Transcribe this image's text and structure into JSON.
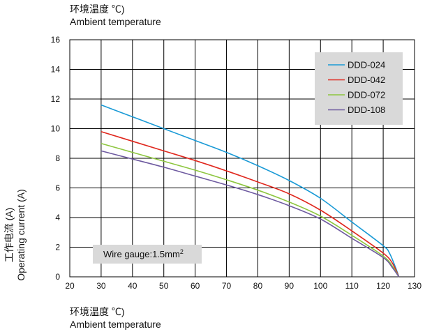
{
  "titles": {
    "top_cn": "环境温度 ℃)",
    "top_en": "Ambient temperature",
    "bottom_cn": "环境温度 ℃)",
    "bottom_en": "Ambient temperature",
    "y_cn": "工作电流 (A)",
    "y_en": "Operating current (A)"
  },
  "note": {
    "text": "Wire gauge:1.5mm",
    "sup": "2"
  },
  "chart_data": {
    "type": "line",
    "xlabel": "环境温度 ℃) Ambient temperature",
    "ylabel": "工作电流 (A) Operating current (A)",
    "xlim": [
      20,
      130
    ],
    "ylim": [
      0,
      16
    ],
    "xticks": [
      20,
      30,
      40,
      50,
      60,
      70,
      80,
      90,
      100,
      110,
      120,
      130
    ],
    "yticks": [
      0,
      2,
      4,
      6,
      8,
      10,
      12,
      14,
      16
    ],
    "grid": true,
    "legend_position": "top-right",
    "series": [
      {
        "name": "DDD-024",
        "color": "#1a9ad6",
        "points": [
          [
            30,
            11.6
          ],
          [
            40,
            10.8
          ],
          [
            50,
            10.0
          ],
          [
            60,
            9.2
          ],
          [
            70,
            8.4
          ],
          [
            80,
            7.5
          ],
          [
            90,
            6.5
          ],
          [
            100,
            5.3
          ],
          [
            110,
            3.7
          ],
          [
            120,
            2.1
          ],
          [
            122,
            1.6
          ],
          [
            124,
            0.6
          ],
          [
            125,
            0
          ]
        ]
      },
      {
        "name": "DDD-042",
        "color": "#e0281e",
        "points": [
          [
            30,
            9.8
          ],
          [
            40,
            9.15
          ],
          [
            50,
            8.5
          ],
          [
            60,
            7.85
          ],
          [
            70,
            7.15
          ],
          [
            80,
            6.4
          ],
          [
            90,
            5.6
          ],
          [
            100,
            4.5
          ],
          [
            110,
            3.1
          ],
          [
            120,
            1.6
          ],
          [
            123,
            0.9
          ],
          [
            125,
            0
          ]
        ]
      },
      {
        "name": "DDD-072",
        "color": "#8dc63f",
        "points": [
          [
            30,
            9.0
          ],
          [
            40,
            8.4
          ],
          [
            50,
            7.8
          ],
          [
            60,
            7.2
          ],
          [
            70,
            6.55
          ],
          [
            80,
            5.85
          ],
          [
            90,
            5.05
          ],
          [
            100,
            4.1
          ],
          [
            110,
            2.8
          ],
          [
            120,
            1.4
          ],
          [
            123,
            0.7
          ],
          [
            125,
            0
          ]
        ]
      },
      {
        "name": "DDD-108",
        "color": "#6e5aa0",
        "points": [
          [
            30,
            8.5
          ],
          [
            40,
            7.95
          ],
          [
            50,
            7.4
          ],
          [
            60,
            6.8
          ],
          [
            70,
            6.2
          ],
          [
            80,
            5.55
          ],
          [
            90,
            4.8
          ],
          [
            100,
            3.9
          ],
          [
            110,
            2.6
          ],
          [
            120,
            1.3
          ],
          [
            123,
            0.6
          ],
          [
            125,
            0
          ]
        ]
      }
    ]
  }
}
